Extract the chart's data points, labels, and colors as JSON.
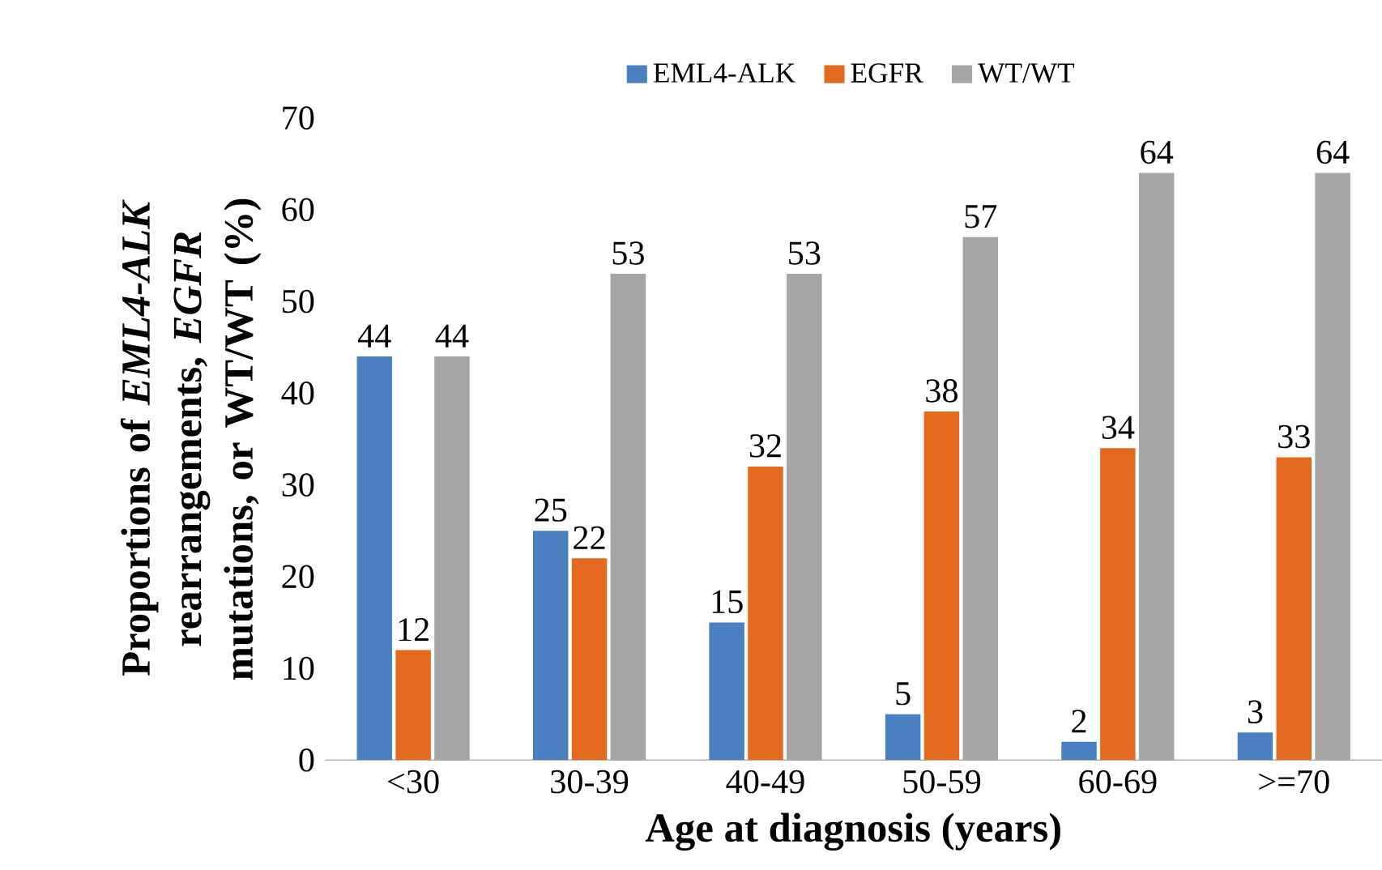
{
  "chart_data": {
    "type": "bar",
    "xlabel": "Age at diagnosis (years)",
    "ylabel": "Proportions of *EML4-ALK* rearrangements, *EGFR* mutations, or WT/WT (%)",
    "categories": [
      "<30",
      "30-39",
      "40-49",
      "50-59",
      "60-69",
      ">=70"
    ],
    "series": [
      {
        "name": "EML4-ALK",
        "color": "#4a7fc1",
        "values": [
          44,
          25,
          15,
          5,
          2,
          3
        ]
      },
      {
        "name": "EGFR",
        "color": "#e46a1f",
        "values": [
          12,
          22,
          32,
          38,
          34,
          33
        ]
      },
      {
        "name": "WT/WT",
        "color": "#a5a5a5",
        "values": [
          44,
          53,
          53,
          57,
          64,
          64
        ]
      }
    ],
    "ylim": [
      0,
      70
    ],
    "yticks": [
      0,
      10,
      20,
      30,
      40,
      50,
      60,
      70
    ],
    "data_labels": true,
    "grid": false,
    "legend": "top"
  }
}
